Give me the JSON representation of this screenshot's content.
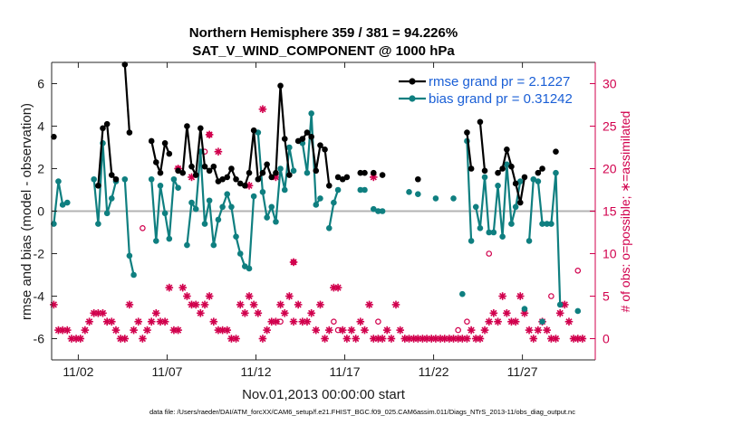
{
  "chart_data": {
    "type": "line",
    "title_line1": "Northern Hemisphere 359 / 381 = 94.226%",
    "title_line2": "SAT_V_WIND_COMPONENT @ 1000 hPa",
    "xlabel": "Nov.01,2013 00:00:00 start",
    "ylabel_left": "rmse and bias (model - observation)",
    "ylabel_right": "# of obs: o=possible; ∗=assimilated",
    "xlim": [
      0.5,
      31.1
    ],
    "ylim_left": [
      -7,
      7
    ],
    "ylim_right": [
      -2.5,
      32.5
    ],
    "x_tick_values": [
      2,
      7,
      12,
      17,
      22,
      27
    ],
    "x_tick_labels": [
      "11/02",
      "11/07",
      "11/12",
      "11/17",
      "11/22",
      "11/27"
    ],
    "y_left_ticks": [
      -6,
      -4,
      -2,
      0,
      2,
      4,
      6
    ],
    "y_right_ticks": [
      0,
      5,
      10,
      15,
      20,
      25,
      30
    ],
    "legend": [
      {
        "label": "rmse grand pr = 2.1227",
        "color": "#000000"
      },
      {
        "label": "bias grand pr = 0.31242",
        "color": "#0f7f80"
      }
    ],
    "footer": "data file: /Users/raeder/DAI/ATM_forcXX/CAM6_setup/f.e21.FHIST_BGC.f09_025.CAM6assim.011/Diags_NTrS_2013-11/obs_diag_output.nc",
    "colors": {
      "rmse": "#000000",
      "bias": "#0f7f80",
      "obs": "#d1004d",
      "zero_line": "#b3b3b3"
    },
    "rmse_segments": [
      [
        [
          0.62,
          3.5
        ]
      ],
      [
        [
          3.12,
          1.2
        ],
        [
          3.38,
          3.9
        ],
        [
          3.62,
          4.1
        ],
        [
          3.88,
          1.7
        ],
        [
          4.12,
          1.5
        ]
      ],
      [
        [
          4.62,
          6.9
        ],
        [
          4.88,
          3.7
        ]
      ],
      [
        [
          6.12,
          3.3
        ],
        [
          6.38,
          2.3
        ],
        [
          6.62,
          1.8
        ],
        [
          6.88,
          3.2
        ],
        [
          7.12,
          2.7
        ]
      ],
      [
        [
          7.62,
          1.9
        ],
        [
          7.88,
          1.8
        ],
        [
          8.12,
          4.0
        ],
        [
          8.38,
          2.1
        ],
        [
          8.62,
          1.7
        ],
        [
          8.88,
          3.9
        ],
        [
          9.12,
          2.1
        ],
        [
          9.38,
          1.9
        ],
        [
          9.62,
          2.1
        ],
        [
          9.88,
          1.4
        ],
        [
          10.12,
          1.5
        ],
        [
          10.38,
          1.6
        ],
        [
          10.62,
          2.0
        ],
        [
          10.88,
          1.5
        ]
      ],
      [
        [
          11.12,
          1.3
        ],
        [
          11.38,
          1.2
        ],
        [
          11.62,
          1.8
        ],
        [
          11.88,
          3.8
        ],
        [
          12.12,
          1.5
        ],
        [
          12.38,
          1.8
        ],
        [
          12.62,
          2.2
        ],
        [
          12.88,
          1.6
        ],
        [
          13.12,
          1.8
        ],
        [
          13.38,
          5.9
        ],
        [
          13.62,
          3.4
        ],
        [
          13.88,
          1.7
        ]
      ],
      [
        [
          14.38,
          3.3
        ],
        [
          14.62,
          3.4
        ],
        [
          14.88,
          3.7
        ],
        [
          15.12,
          3.5
        ],
        [
          15.38,
          1.9
        ],
        [
          15.62,
          3.1
        ],
        [
          15.88,
          2.9
        ],
        [
          16.12,
          1.2
        ]
      ],
      [
        [
          16.62,
          1.6
        ],
        [
          16.88,
          1.5
        ],
        [
          17.12,
          1.6
        ]
      ],
      [
        [
          17.88,
          1.8
        ],
        [
          18.12,
          1.8
        ]
      ],
      [
        [
          23.88,
          3.7
        ],
        [
          24.12,
          2.0
        ]
      ],
      [
        [
          24.62,
          4.2
        ],
        [
          24.88,
          1.9
        ]
      ],
      [
        [
          25.62,
          1.8
        ],
        [
          25.88,
          2.0
        ],
        [
          26.12,
          2.9
        ],
        [
          26.38,
          2.1
        ],
        [
          26.62,
          1.3
        ],
        [
          26.88,
          0.4
        ],
        [
          27.12,
          1.6
        ]
      ],
      [
        [
          27.88,
          1.8
        ],
        [
          28.12,
          2.0
        ]
      ],
      [
        [
          28.88,
          2.8
        ]
      ]
    ],
    "rmse_isolated": [
      [
        18.62,
        1.8
      ],
      [
        19.12,
        1.7
      ],
      [
        21.12,
        1.5
      ]
    ],
    "bias_segments": [
      [
        [
          0.62,
          -0.6
        ],
        [
          0.88,
          1.4
        ],
        [
          1.12,
          0.3
        ],
        [
          1.38,
          0.4
        ]
      ],
      [
        [
          2.88,
          1.5
        ],
        [
          3.12,
          -0.6
        ],
        [
          3.38,
          3.2
        ],
        [
          3.62,
          -0.1
        ],
        [
          3.88,
          0.6
        ],
        [
          4.12,
          1.4
        ]
      ],
      [
        [
          4.62,
          1.5
        ],
        [
          4.88,
          -2.1
        ],
        [
          5.12,
          -3.0
        ]
      ],
      [
        [
          6.12,
          1.5
        ],
        [
          6.38,
          -1.4
        ],
        [
          6.62,
          1.2
        ],
        [
          6.88,
          -0.1
        ],
        [
          7.12,
          -1.3
        ],
        [
          7.38,
          1.5
        ],
        [
          7.62,
          1.1
        ]
      ],
      [
        [
          8.12,
          -1.6
        ],
        [
          8.38,
          0.4
        ],
        [
          8.62,
          0.1
        ],
        [
          8.88,
          2.8
        ],
        [
          9.12,
          -0.6
        ],
        [
          9.38,
          0.5
        ],
        [
          9.62,
          -1.6
        ],
        [
          9.88,
          -0.4
        ],
        [
          10.12,
          0.2
        ],
        [
          10.38,
          0.8
        ],
        [
          10.62,
          0.2
        ],
        [
          10.88,
          -1.2
        ],
        [
          11.12,
          -2.0
        ],
        [
          11.38,
          -2.6
        ],
        [
          11.62,
          -2.7
        ],
        [
          11.88,
          0.7
        ]
      ],
      [
        [
          12.12,
          3.7
        ],
        [
          12.38,
          0.9
        ],
        [
          12.62,
          -0.3
        ],
        [
          12.88,
          0.2
        ],
        [
          13.12,
          -0.5
        ],
        [
          13.38,
          2.0
        ],
        [
          13.62,
          1.0
        ],
        [
          13.88,
          3.0
        ],
        [
          14.12,
          1.9
        ]
      ],
      [
        [
          14.62,
          3.2
        ],
        [
          14.88,
          1.8
        ],
        [
          15.12,
          4.6
        ],
        [
          15.38,
          0.3
        ],
        [
          15.62,
          0.6
        ]
      ],
      [
        [
          16.12,
          -0.8
        ],
        [
          16.38,
          0.4
        ],
        [
          16.62,
          1.0
        ]
      ],
      [
        [
          17.88,
          1.0
        ],
        [
          18.12,
          1.0
        ]
      ],
      [
        [
          18.62,
          0.1
        ],
        [
          18.88,
          0.0
        ],
        [
          19.12,
          0.0
        ]
      ],
      [
        [
          23.88,
          3.3
        ],
        [
          24.12,
          -1.4
        ]
      ],
      [
        [
          24.38,
          0.2
        ],
        [
          24.62,
          -0.8
        ],
        [
          24.88,
          1.6
        ],
        [
          25.12,
          -1.0
        ],
        [
          25.38,
          -1.0
        ],
        [
          25.62,
          1.2
        ],
        [
          25.88,
          -1.2
        ],
        [
          26.12,
          2.2
        ],
        [
          26.38,
          -0.6
        ],
        [
          26.62,
          0.2
        ],
        [
          26.88,
          1.4
        ]
      ],
      [
        [
          27.38,
          -1.4
        ],
        [
          27.62,
          1.5
        ],
        [
          27.88,
          1.4
        ],
        [
          28.12,
          -0.6
        ],
        [
          28.38,
          -0.6
        ],
        [
          28.62,
          -0.6
        ],
        [
          28.88,
          1.8
        ],
        [
          29.12,
          -4.4
        ]
      ]
    ],
    "bias_isolated": [
      [
        20.62,
        0.9
      ],
      [
        21.12,
        0.8
      ],
      [
        22.12,
        0.6
      ],
      [
        23.12,
        0.6
      ],
      [
        23.62,
        -3.9
      ],
      [
        27.12,
        -4.6
      ],
      [
        28.12,
        -5.2
      ],
      [
        30.12,
        -4.7
      ]
    ],
    "obs_assimilated": [
      [
        0.62,
        4
      ],
      [
        0.88,
        1
      ],
      [
        1.12,
        1
      ],
      [
        1.38,
        1
      ],
      [
        1.62,
        0
      ],
      [
        1.88,
        0
      ],
      [
        2.12,
        0
      ],
      [
        2.38,
        1
      ],
      [
        2.62,
        2
      ],
      [
        2.88,
        3
      ],
      [
        3.12,
        3
      ],
      [
        3.38,
        3
      ],
      [
        3.62,
        2
      ],
      [
        3.88,
        2
      ],
      [
        4.12,
        1
      ],
      [
        4.38,
        0
      ],
      [
        4.62,
        0
      ],
      [
        4.88,
        4
      ],
      [
        5.12,
        1
      ],
      [
        5.38,
        2
      ],
      [
        5.62,
        0
      ],
      [
        5.88,
        1
      ],
      [
        6.12,
        2
      ],
      [
        6.38,
        3
      ],
      [
        6.62,
        2
      ],
      [
        6.88,
        2
      ],
      [
        7.12,
        6
      ],
      [
        7.38,
        1
      ],
      [
        7.62,
        1
      ],
      [
        7.88,
        6
      ],
      [
        8.12,
        5
      ],
      [
        8.38,
        4
      ],
      [
        8.62,
        4
      ],
      [
        8.88,
        3
      ],
      [
        9.12,
        4
      ],
      [
        9.38,
        5
      ],
      [
        9.62,
        2
      ],
      [
        9.88,
        1
      ],
      [
        10.12,
        1
      ],
      [
        10.38,
        1
      ],
      [
        10.62,
        0
      ],
      [
        10.88,
        0
      ],
      [
        11.12,
        4
      ],
      [
        11.38,
        3
      ],
      [
        11.62,
        5
      ],
      [
        11.88,
        4
      ],
      [
        12.12,
        3
      ],
      [
        12.38,
        0
      ],
      [
        12.62,
        1
      ],
      [
        12.88,
        2
      ],
      [
        13.12,
        2
      ],
      [
        13.38,
        4
      ],
      [
        13.62,
        3
      ],
      [
        13.88,
        5
      ],
      [
        14.12,
        2
      ],
      [
        14.38,
        4
      ],
      [
        14.62,
        2
      ],
      [
        14.88,
        2
      ],
      [
        15.12,
        3
      ],
      [
        15.38,
        1
      ],
      [
        15.62,
        4
      ],
      [
        15.88,
        0
      ],
      [
        16.12,
        1
      ],
      [
        16.38,
        6
      ],
      [
        16.62,
        6
      ],
      [
        16.88,
        1
      ],
      [
        17.12,
        0
      ],
      [
        17.38,
        1
      ],
      [
        17.62,
        0
      ],
      [
        17.88,
        2
      ],
      [
        18.12,
        1
      ],
      [
        18.38,
        4
      ],
      [
        18.62,
        0
      ],
      [
        18.88,
        0
      ],
      [
        19.12,
        0
      ],
      [
        19.38,
        1
      ],
      [
        19.62,
        0
      ],
      [
        19.88,
        4
      ],
      [
        20.12,
        1
      ],
      [
        20.38,
        0
      ],
      [
        20.62,
        0
      ],
      [
        20.88,
        0
      ],
      [
        21.12,
        0
      ],
      [
        21.38,
        0
      ],
      [
        21.62,
        0
      ],
      [
        21.88,
        0
      ],
      [
        22.12,
        0
      ],
      [
        22.38,
        0
      ],
      [
        22.62,
        0
      ],
      [
        22.88,
        0
      ],
      [
        23.12,
        0
      ],
      [
        23.38,
        0
      ],
      [
        23.62,
        0
      ],
      [
        23.88,
        0
      ],
      [
        24.12,
        1
      ],
      [
        24.38,
        0
      ],
      [
        24.62,
        0
      ],
      [
        24.88,
        1
      ],
      [
        25.12,
        2
      ],
      [
        25.38,
        3
      ],
      [
        25.62,
        2
      ],
      [
        25.88,
        5
      ],
      [
        26.12,
        3
      ],
      [
        26.38,
        2
      ],
      [
        26.62,
        2
      ],
      [
        26.88,
        5
      ],
      [
        27.12,
        3
      ],
      [
        27.38,
        1
      ],
      [
        27.62,
        0
      ],
      [
        27.88,
        1
      ],
      [
        28.12,
        2
      ],
      [
        28.38,
        1
      ],
      [
        28.62,
        0
      ],
      [
        28.88,
        0
      ],
      [
        29.12,
        3
      ],
      [
        29.38,
        4
      ],
      [
        29.62,
        2
      ],
      [
        29.88,
        0
      ],
      [
        30.12,
        0
      ],
      [
        30.38,
        0
      ]
    ],
    "obs_high_assimilated": [
      [
        7.62,
        20
      ],
      [
        8.38,
        19
      ],
      [
        9.38,
        24
      ],
      [
        9.88,
        22
      ],
      [
        11.62,
        18
      ],
      [
        12.38,
        27
      ],
      [
        13.12,
        19
      ],
      [
        14.12,
        9
      ],
      [
        18.62,
        19
      ]
    ],
    "obs_possible": [
      [
        5.62,
        13
      ],
      [
        9.38,
        24
      ],
      [
        9.12,
        22
      ],
      [
        7.62,
        20
      ],
      [
        13.38,
        2
      ],
      [
        14.12,
        9
      ],
      [
        16.38,
        2
      ],
      [
        16.62,
        1
      ],
      [
        18.88,
        2
      ],
      [
        23.38,
        1
      ],
      [
        23.88,
        2
      ],
      [
        25.12,
        10
      ],
      [
        28.62,
        5
      ],
      [
        30.12,
        8
      ]
    ]
  }
}
